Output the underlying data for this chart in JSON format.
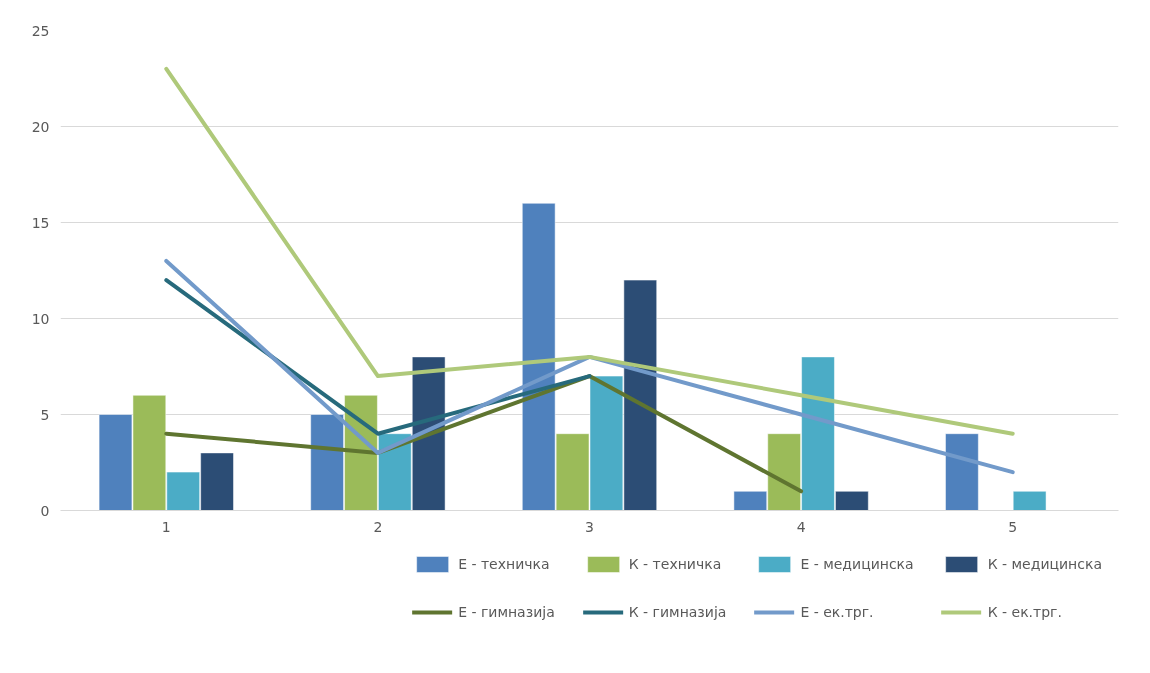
{
  "chart_data": {
    "type": "bar",
    "categories": [
      "1",
      "2",
      "3",
      "4",
      "5"
    ],
    "series": [
      {
        "name": "Е - техничка",
        "color": "#4f81bd",
        "values": [
          5,
          5,
          16,
          1,
          4
        ]
      },
      {
        "name": "К - техничка",
        "color": "#9bbb59",
        "values": [
          6,
          6,
          4,
          4,
          null
        ]
      },
      {
        "name": "Е - медицинска",
        "color": "#4bacc6",
        "values": [
          2,
          4,
          7,
          8,
          1
        ]
      },
      {
        "name": "К - медицинска",
        "color": "#2c4d75",
        "values": [
          3,
          8,
          12,
          1,
          null
        ]
      },
      {
        "name": "Е - гимназија",
        "type": "line",
        "color": "#5f7530",
        "values": [
          4,
          3,
          7,
          1,
          null
        ]
      },
      {
        "name": "К - гимназија",
        "type": "line",
        "color": "#276a7c",
        "values": [
          12,
          4,
          7,
          null,
          null
        ]
      },
      {
        "name": "Е - ек.трг.",
        "type": "line",
        "color": "#729aca",
        "values": [
          13,
          3,
          8,
          5,
          2
        ]
      },
      {
        "name": "К - ек.трг.",
        "type": "line",
        "color": "#afc97a",
        "values": [
          23,
          7,
          8,
          6,
          4
        ]
      }
    ],
    "ylim": [
      0,
      25
    ],
    "yticks": [
      0,
      5,
      10,
      15,
      20,
      25
    ],
    "grid": "y",
    "legend": "bottom"
  }
}
